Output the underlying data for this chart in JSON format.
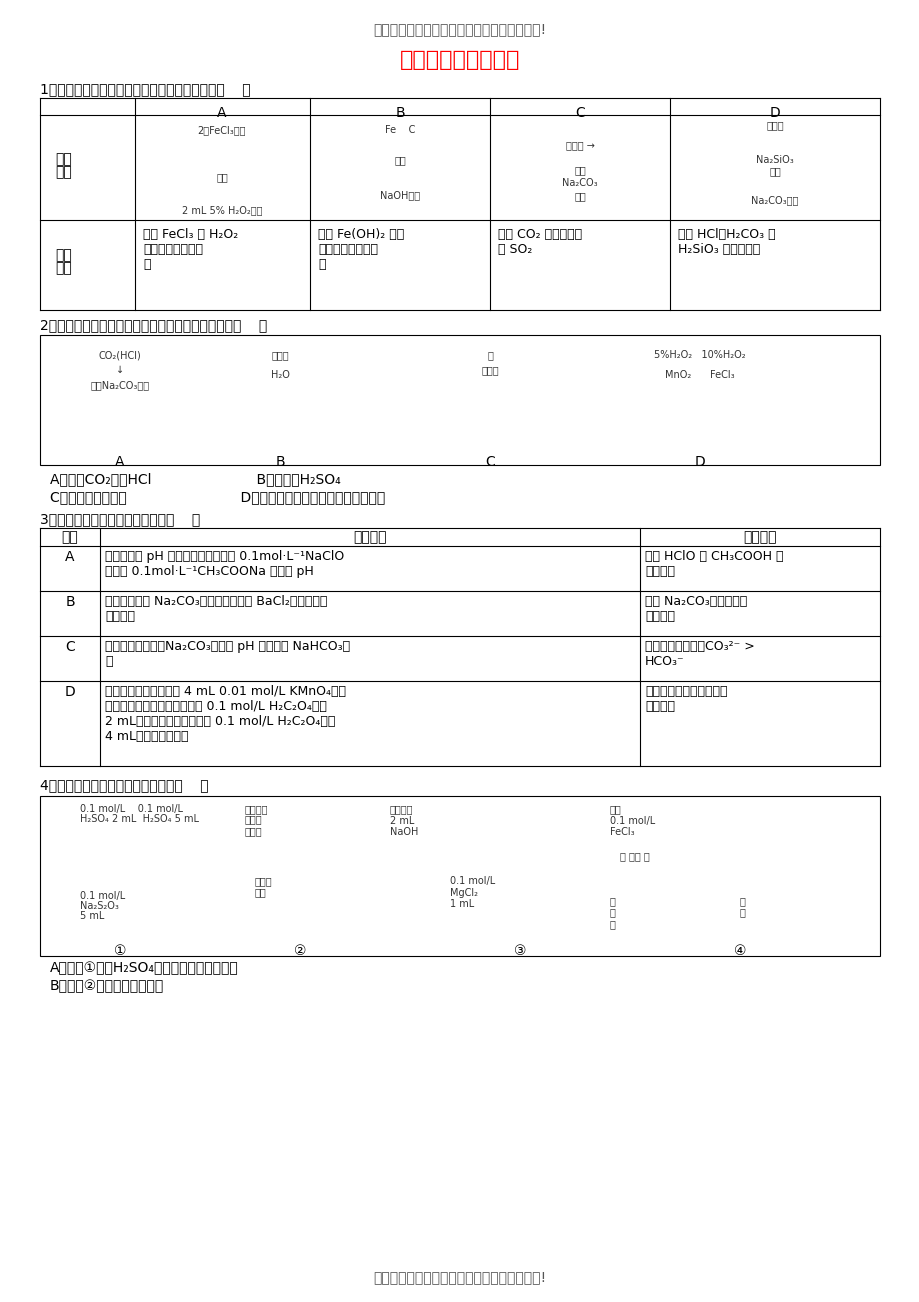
{
  "bg_color": "#ffffff",
  "header_text": "欢迎阅读本文档，希望本文档能对您有所帮助!",
  "title": "化学反应条件的控制",
  "footer_text": "欢迎阅读本文档，希望本文档能对您有所帮助!",
  "q1_text": "1．下列图中的实验方案，能达到实验目的的是（    ）",
  "q2_text": "2．下图所示的实验方法、装置或操作完全正确的是（    ）",
  "q2_options": [
    "A．除去CO₂中的HCl                        B．稀释浓H₂SO₄",
    "C．检查装置气密性                          D．研究不同催化剂对反应速率的影响"
  ],
  "q3_text": "3．下列实验能达到预期目的的是（    ）",
  "q4_text": "4．下列装置或操作能达到目的的是（    ）",
  "q4_options": [
    "A．装置①探究H₂SO₄浓度对反应速率的影响",
    "B．装置②可用于测定中和热"
  ],
  "table1_headers": [
    "",
    "A",
    "B",
    "C",
    "D"
  ],
  "table1_row1": [
    "实验\n方案",
    "",
    "",
    "",
    ""
  ],
  "table1_row2": [
    "实验\n目的",
    "验证 FeCl₃ 对 H₂O₂\n分解反应有催化作\n用",
    "制备 Fe(OH)₂ 并能\n较长时间观察其颜\n色",
    "除去 CO₂ 气体中混有\n的 SO₂",
    "比较 HCl、H₂CO₃ 和\nH₂SiO₃ 的酸性强弱"
  ],
  "table3_headers": [
    "编号",
    "实验内容",
    "实验目的"
  ],
  "table3_rows": [
    [
      "A",
      "室温下，用 pH 试纸分别测定浓度为 0.1mol·L⁻¹NaCl0\n溶液和 0.1mol·L⁻¹CH₃COONa 溶液的 pH",
      "比较 HClO 和 CH₃COOH 的\n酸性强弱"
    ],
    [
      "B",
      "向含有酚酞的 Na₂CO₃溶液中加入少量 BaCl₂固体，溶液\n红色变浅",
      "证明 Na₂CO₃溶液中存在\n水解平衡"
    ],
    [
      "C",
      "常温下，测得饱和Na₂CO₃溶液的 pH 大于饱和 NaHCO₃溶\n液",
      "常温下水解程度：CO₃²⁻ >\nHCO₃⁻"
    ],
    [
      "D",
      "取两只试管，分别加入 4 mL 0.01 mol/L KMnO₄酸性\n溶液，然后向一只试管中加入 0.1 mol/L H₂C₂O₄溶液\n2 mL，向另一只试管中加入 0.1 mol/L H₂C₂O₄溶液\n4 mL，记录褪色时间",
      "证明草酸浓度越大，反应\n速率越快"
    ]
  ]
}
